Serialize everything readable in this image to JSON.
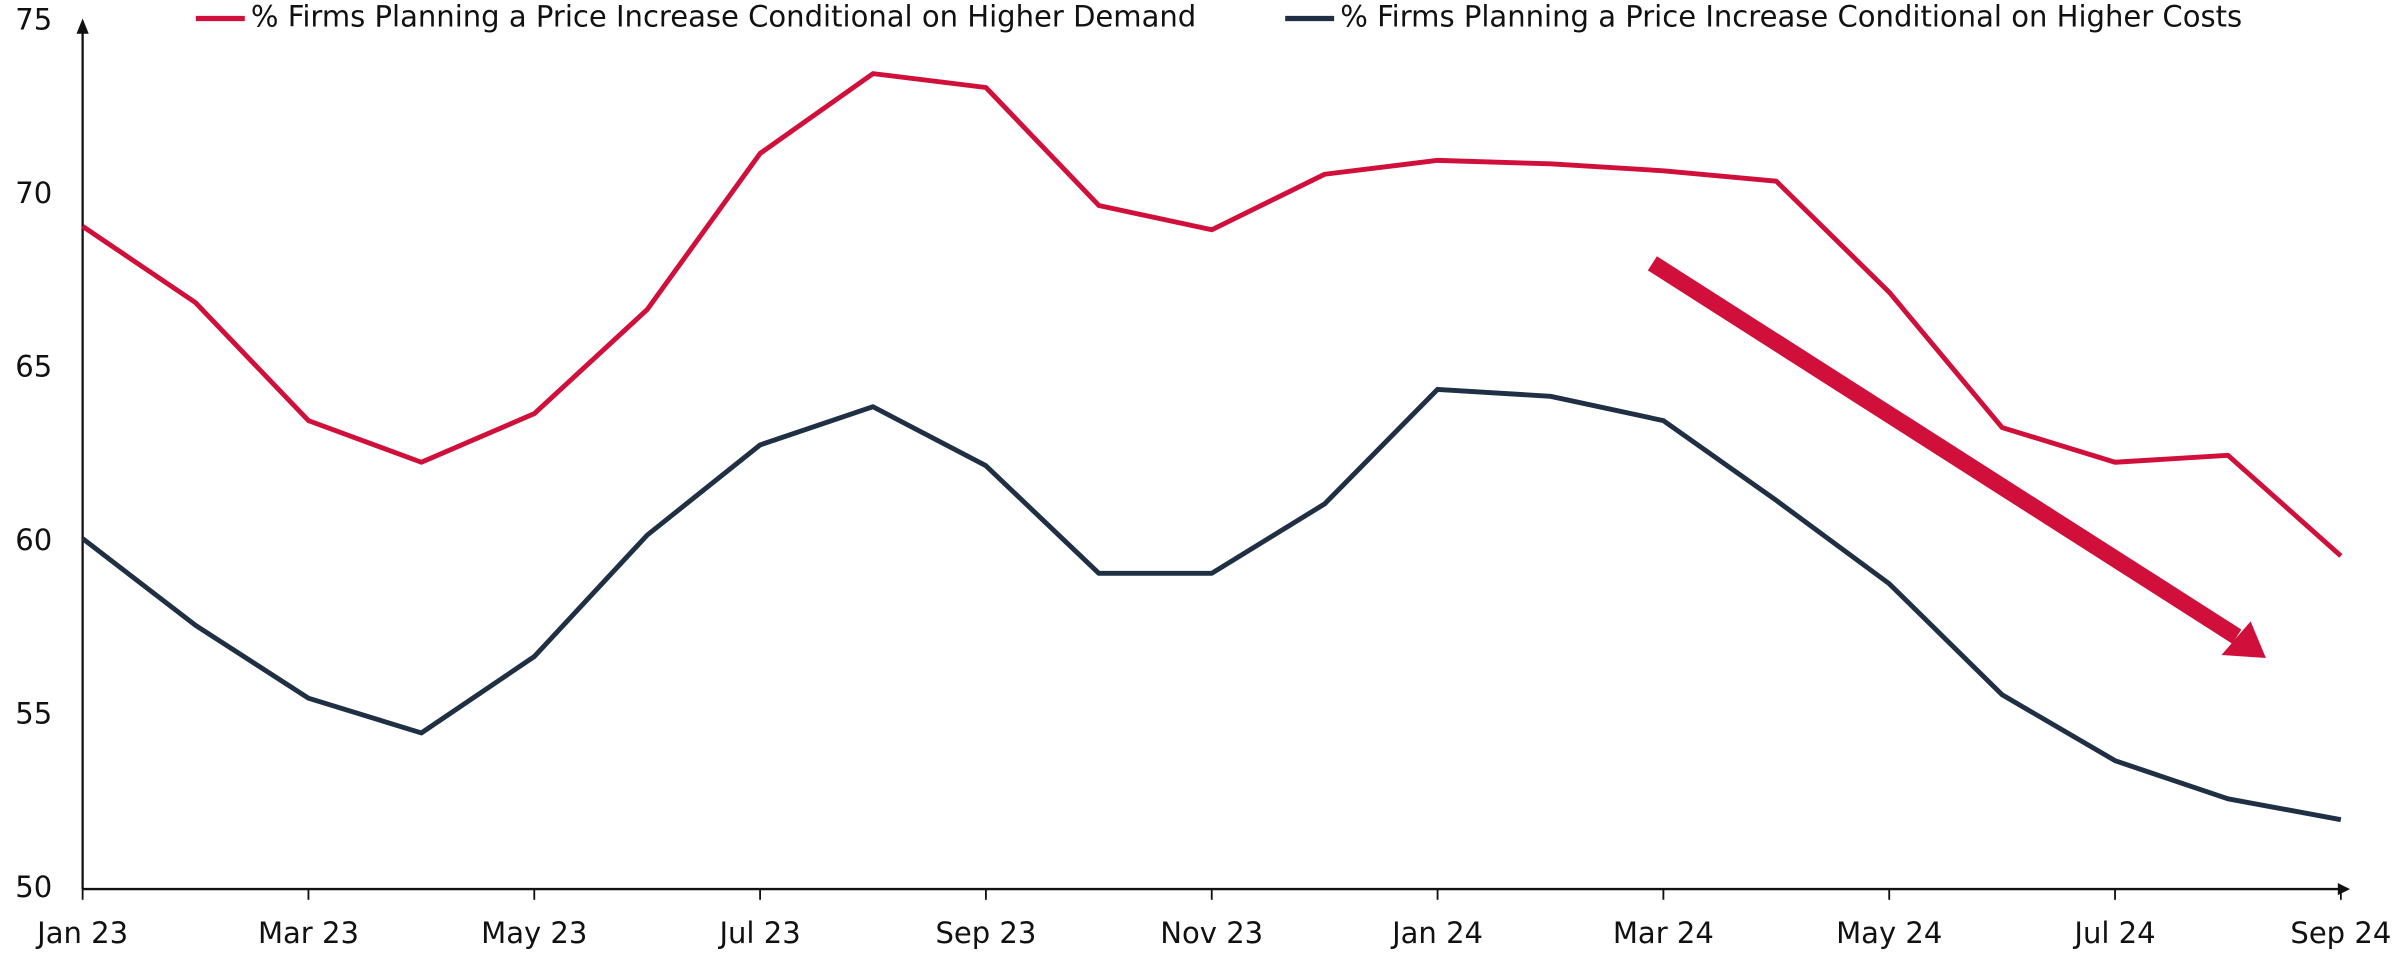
{
  "chart_data": {
    "type": "line",
    "categories": [
      "Jan 23",
      null,
      "Mar 23",
      null,
      "May 23",
      null,
      "Jul 23",
      null,
      "Sep 23",
      null,
      "Nov 23",
      null,
      "Jan 24",
      null,
      "Mar 24",
      null,
      "May 24",
      null,
      "Jul 24",
      null,
      "Sep 24"
    ],
    "series": [
      {
        "name": "% Firms Planning a Price Increase Conditional on Higher Demand",
        "color": "#d0103a",
        "values": [
          69.1,
          66.9,
          63.5,
          62.3,
          63.7,
          66.7,
          71.2,
          73.5,
          73.1,
          69.7,
          69.0,
          70.6,
          71.0,
          70.9,
          70.7,
          70.4,
          67.2,
          63.3,
          62.3,
          62.5,
          59.6
        ]
      },
      {
        "name": "% Firms Planning a Price Increase Conditional on Higher Costs",
        "color": "#1f3044",
        "values": [
          60.1,
          57.6,
          55.5,
          54.5,
          56.7,
          60.2,
          62.8,
          63.9,
          62.2,
          59.1,
          59.1,
          61.1,
          64.4,
          64.2,
          63.5,
          61.2,
          58.8,
          55.6,
          53.7,
          52.6,
          52.0
        ]
      }
    ],
    "ylim": [
      50,
      75
    ],
    "yticks": [
      50,
      55,
      60,
      65,
      70,
      75
    ],
    "grid": false
  }
}
